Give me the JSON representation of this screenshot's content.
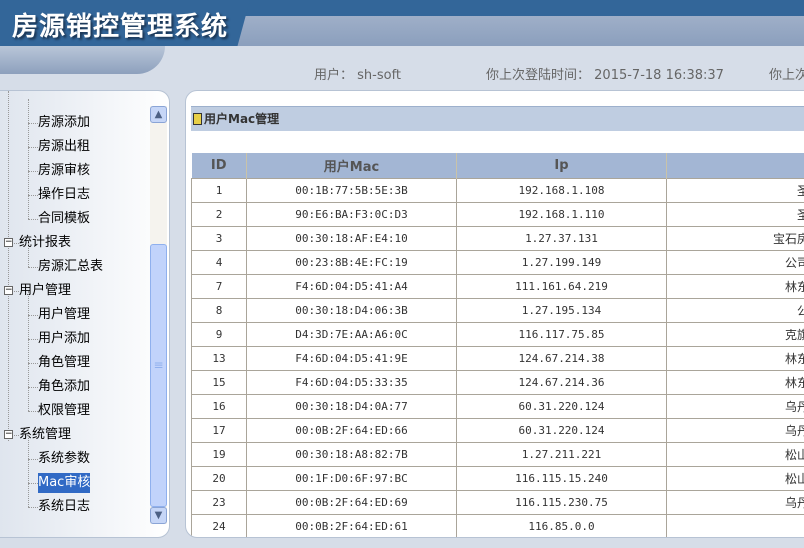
{
  "app": {
    "title": "房源销控管理系统"
  },
  "header": {
    "user_label": "用户：",
    "user": "sh-soft",
    "last_login_label": "你上次登陆时间：",
    "last_login": "2015-7-18 16:38:37",
    "extra_label": "你上次"
  },
  "sidebar": {
    "items": [
      {
        "label": "房源添加",
        "level": 2
      },
      {
        "label": "房源出租",
        "level": 2
      },
      {
        "label": "房源审核",
        "level": 2
      },
      {
        "label": "操作日志",
        "level": 2
      },
      {
        "label": "合同模板",
        "level": 2
      },
      {
        "label": "统计报表",
        "level": 1
      },
      {
        "label": "房源汇总表",
        "level": 2
      },
      {
        "label": "用户管理",
        "level": 1
      },
      {
        "label": "用户管理",
        "level": 2
      },
      {
        "label": "用户添加",
        "level": 2
      },
      {
        "label": "角色管理",
        "level": 2
      },
      {
        "label": "角色添加",
        "level": 2
      },
      {
        "label": "权限管理",
        "level": 2
      },
      {
        "label": "系统管理",
        "level": 1
      },
      {
        "label": "系统参数",
        "level": 2
      },
      {
        "label": "Mac审核",
        "level": 2,
        "selected": true
      },
      {
        "label": "系统日志",
        "level": 2
      }
    ]
  },
  "panel": {
    "title": "用户Mac管理"
  },
  "table": {
    "columns": [
      "ID",
      "用户Mac",
      "Ip",
      ""
    ],
    "rows": [
      [
        "1",
        "00:1B:77:5B:5E:3B",
        "192.168.1.108",
        "圣豪"
      ],
      [
        "2",
        "90:E6:BA:F3:0C:D3",
        "192.168.1.110",
        "圣豪"
      ],
      [
        "3",
        "00:30:18:AF:E4:10",
        "1.27.37.131",
        "宝石房产"
      ],
      [
        "4",
        "00:23:8B:4E:FC:19",
        "1.27.199.149",
        "公司客"
      ],
      [
        "7",
        "F4:6D:04:D5:41:A4",
        "111.161.64.219",
        "林东代"
      ],
      [
        "8",
        "00:30:18:D4:06:3B",
        "1.27.195.134",
        "公司"
      ],
      [
        "9",
        "D4:3D:7E:AA:A6:0C",
        "116.117.75.85",
        "克旗客"
      ],
      [
        "13",
        "F4:6D:04:D5:41:9E",
        "124.67.214.38",
        "林东客"
      ],
      [
        "15",
        "F4:6D:04:D5:33:35",
        "124.67.214.36",
        "林东客"
      ],
      [
        "16",
        "00:30:18:D4:0A:77",
        "60.31.220.124",
        "乌丹财"
      ],
      [
        "17",
        "00:0B:2F:64:ED:66",
        "60.31.220.124",
        "乌丹客"
      ],
      [
        "19",
        "00:30:18:A8:82:7B",
        "1.27.211.221",
        "松山客"
      ],
      [
        "20",
        "00:1F:D0:6F:97:BC",
        "116.115.15.240",
        "松山客"
      ],
      [
        "23",
        "00:0B:2F:64:ED:69",
        "116.115.230.75",
        "乌丹客"
      ],
      [
        "24",
        "00:0B:2F:64:ED:61",
        "116.85.0.0",
        ""
      ]
    ]
  }
}
